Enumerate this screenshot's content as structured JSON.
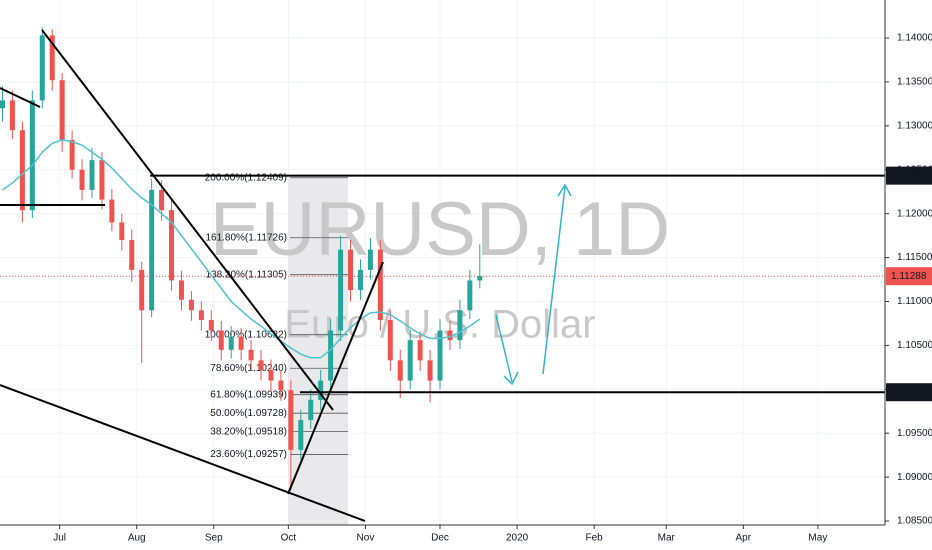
{
  "chart_data": {
    "type": "candlestick",
    "title": "EURUSD, 1D",
    "subtitle": "Euro / U.S. Dollar",
    "x": [
      7,
      11,
      15,
      19,
      23,
      27,
      31,
      35,
      39,
      43,
      47,
      51,
      55,
      59,
      63,
      67,
      71,
      75,
      79,
      83,
      87,
      91,
      95,
      99,
      103,
      107,
      111,
      115,
      119,
      123,
      127,
      131,
      135,
      139,
      143,
      147,
      151,
      155,
      159,
      163,
      167,
      171,
      175,
      179,
      183,
      187,
      191,
      195,
      199
    ],
    "ohlc": [
      [
        1.132,
        1.1345,
        1.1305,
        1.1329
      ],
      [
        1.1329,
        1.134,
        1.1285,
        1.1295
      ],
      [
        1.1295,
        1.1305,
        1.119,
        1.1204
      ],
      [
        1.1204,
        1.134,
        1.1195,
        1.1329
      ],
      [
        1.1329,
        1.1412,
        1.132,
        1.1403
      ],
      [
        1.1403,
        1.141,
        1.134,
        1.1352
      ],
      [
        1.1352,
        1.136,
        1.127,
        1.1284
      ],
      [
        1.1284,
        1.1295,
        1.124,
        1.125
      ],
      [
        1.125,
        1.1262,
        1.1215,
        1.1227
      ],
      [
        1.1227,
        1.1275,
        1.1218,
        1.1261
      ],
      [
        1.1261,
        1.127,
        1.1205,
        1.1216
      ],
      [
        1.1216,
        1.1228,
        1.118,
        1.119
      ],
      [
        1.119,
        1.12,
        1.1158,
        1.117
      ],
      [
        1.117,
        1.1182,
        1.1122,
        1.1136
      ],
      [
        1.1136,
        1.1145,
        1.103,
        1.109
      ],
      [
        1.109,
        1.124,
        1.1082,
        1.1227
      ],
      [
        1.1227,
        1.1238,
        1.1192,
        1.1204
      ],
      [
        1.1204,
        1.1215,
        1.1112,
        1.1124
      ],
      [
        1.1124,
        1.1135,
        1.109,
        1.1102
      ],
      [
        1.1102,
        1.1112,
        1.1078,
        1.109
      ],
      [
        1.109,
        1.11,
        1.1067,
        1.1079
      ],
      [
        1.1079,
        1.109,
        1.1055,
        1.1067
      ],
      [
        1.1067,
        1.1078,
        1.1033,
        1.1045
      ],
      [
        1.1045,
        1.1072,
        1.1035,
        1.106
      ],
      [
        1.106,
        1.107,
        1.1033,
        1.1045
      ],
      [
        1.1045,
        1.1056,
        1.1021,
        1.1033
      ],
      [
        1.1033,
        1.1045,
        1.101,
        1.1022
      ],
      [
        1.1022,
        1.1034,
        1.0998,
        1.101
      ],
      [
        1.101,
        1.1022,
        1.0987,
        1.0999
      ],
      [
        1.0999,
        1.101,
        1.0885,
        1.0931
      ],
      [
        1.0931,
        1.0977,
        1.092,
        1.0965
      ],
      [
        1.0965,
        1.1,
        1.0955,
        1.0988
      ],
      [
        1.0988,
        1.1022,
        1.0976,
        1.101
      ],
      [
        1.101,
        1.108,
        1.1,
        1.1067
      ],
      [
        1.1067,
        1.1175,
        1.1055,
        1.1159
      ],
      [
        1.1159,
        1.117,
        1.11,
        1.1113
      ],
      [
        1.1113,
        1.1148,
        1.1102,
        1.1136
      ],
      [
        1.1136,
        1.1172,
        1.1125,
        1.1159
      ],
      [
        1.1159,
        1.117,
        1.1067,
        1.1079
      ],
      [
        1.1079,
        1.109,
        1.1021,
        1.1033
      ],
      [
        1.1033,
        1.1045,
        1.099,
        1.101
      ],
      [
        1.101,
        1.1068,
        1.1,
        1.1056
      ],
      [
        1.1056,
        1.1066,
        1.1021,
        1.1033
      ],
      [
        1.1033,
        1.1045,
        1.0985,
        1.101
      ],
      [
        1.101,
        1.108,
        1.1,
        1.1067
      ],
      [
        1.1067,
        1.1078,
        1.1045,
        1.1056
      ],
      [
        1.1056,
        1.1102,
        1.1046,
        1.109
      ],
      [
        1.109,
        1.1136,
        1.108,
        1.1124
      ],
      [
        1.1124,
        1.1165,
        1.1115,
        1.1129
      ]
    ],
    "up_color": "#26a69a",
    "down_color": "#ef5350",
    "moving_average": {
      "color": "#4fc3d0",
      "values": [
        1.1227,
        1.1235,
        1.1245,
        1.1255,
        1.127,
        1.128,
        1.1284,
        1.1282,
        1.1278,
        1.127,
        1.1262,
        1.1252,
        1.124,
        1.1228,
        1.1218,
        1.121,
        1.12,
        1.119,
        1.1175,
        1.116,
        1.1145,
        1.113,
        1.1115,
        1.11,
        1.109,
        1.108,
        1.1072,
        1.1063,
        1.1055,
        1.1047,
        1.104,
        1.1036,
        1.1036,
        1.1045,
        1.1058,
        1.107,
        1.108,
        1.1087,
        1.1088,
        1.1085,
        1.1078,
        1.107,
        1.1063,
        1.1058,
        1.1058,
        1.106,
        1.1065,
        1.1072,
        1.108
      ]
    },
    "xlim": [
      6,
      362
    ],
    "xticks": [
      {
        "value": 30,
        "label": "Jul"
      },
      {
        "value": 61,
        "label": "Aug"
      },
      {
        "value": 92,
        "label": "Sep"
      },
      {
        "value": 122,
        "label": "Oct"
      },
      {
        "value": 153,
        "label": "Nov"
      },
      {
        "value": 183,
        "label": "Dec"
      },
      {
        "value": 214,
        "label": "2020"
      },
      {
        "value": 245,
        "label": "Feb"
      },
      {
        "value": 274,
        "label": "Mar"
      },
      {
        "value": 305,
        "label": "Apr"
      },
      {
        "value": 335,
        "label": "May"
      }
    ],
    "ylim": [
      1.08455,
      1.14433
    ],
    "yticks": [
      {
        "value": 1.085,
        "label": "1.08500"
      },
      {
        "value": 1.09,
        "label": "1.09000"
      },
      {
        "value": 1.095,
        "label": "1.09500"
      },
      {
        "value": 1.1,
        "label": "1.10000"
      },
      {
        "value": 1.105,
        "label": "1.10500"
      },
      {
        "value": 1.11,
        "label": "1.11000"
      },
      {
        "value": 1.115,
        "label": "1.11500"
      },
      {
        "value": 1.12,
        "label": "1.12000"
      },
      {
        "value": 1.125,
        "label": "1.12500"
      },
      {
        "value": 1.13,
        "label": "1.13000"
      },
      {
        "value": 1.135,
        "label": "1.13500"
      },
      {
        "value": 1.14,
        "label": "1.14000"
      }
    ],
    "grid": true,
    "price_lines": [
      1.12433,
      1.09967
    ],
    "last_price": 1.11288,
    "last_price_color": "#ef5350",
    "fib_levels": [
      {
        "value": 1.12409,
        "label": "200.00%(1.12409)"
      },
      {
        "value": 1.11726,
        "label": "161.80%(1.11726)"
      },
      {
        "value": 1.11305,
        "label": "138.20%(1.11305)"
      },
      {
        "value": 1.10622,
        "label": "100.00%(1.10622)"
      },
      {
        "value": 1.1024,
        "label": "78.60%(1.10240)"
      },
      {
        "value": 1.09939,
        "label": "61.80%(1.09939)"
      },
      {
        "value": 1.09728,
        "label": "50.00%(1.09728)"
      },
      {
        "value": 1.09518,
        "label": "38.20%(1.09518)"
      },
      {
        "value": 1.09257,
        "label": "23.60%(1.09257)"
      }
    ]
  }
}
